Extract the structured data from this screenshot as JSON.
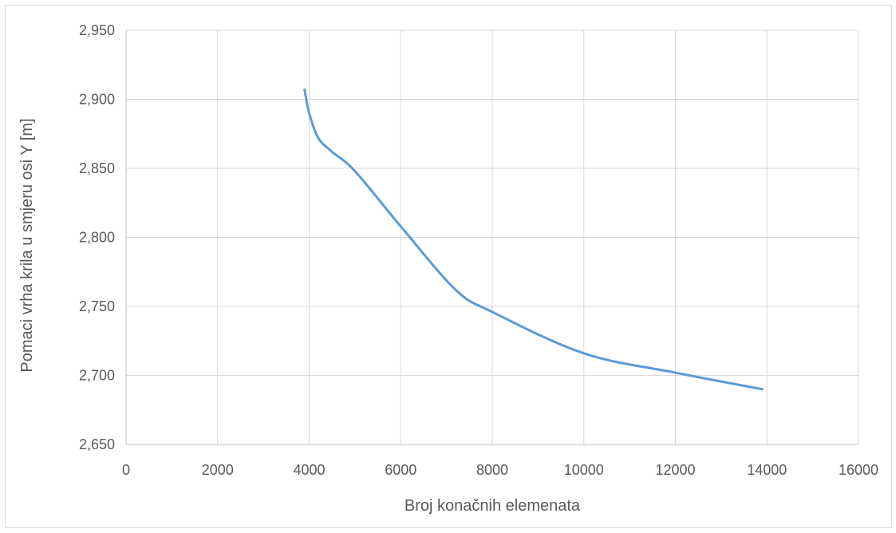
{
  "chart_data": {
    "type": "line",
    "title": "",
    "xlabel": "Broj konačnih elemenata",
    "ylabel": "Pomaci vrha krila u smjeru osi Y [m]",
    "xlim": [
      0,
      16000
    ],
    "ylim": [
      2.65,
      2.95
    ],
    "x_ticks": [
      0,
      2000,
      4000,
      6000,
      8000,
      10000,
      12000,
      14000,
      16000
    ],
    "x_tick_labels": [
      "0",
      "2000",
      "4000",
      "6000",
      "8000",
      "10000",
      "12000",
      "14000",
      "16000"
    ],
    "y_ticks": [
      2.65,
      2.7,
      2.75,
      2.8,
      2.85,
      2.9,
      2.95
    ],
    "y_tick_labels": [
      "2,650",
      "2,700",
      "2,750",
      "2,800",
      "2,850",
      "2,900",
      "2,950"
    ],
    "grid": true,
    "legend": "none",
    "series": [
      {
        "color": "#5b9bd5",
        "x": [
          3900,
          4000,
          4200,
          4500,
          5000,
          6000,
          7200,
          8000,
          10000,
          12000,
          13900
        ],
        "y": [
          2.907,
          2.89,
          2.872,
          2.862,
          2.848,
          2.808,
          2.762,
          2.746,
          2.716,
          2.702,
          2.69
        ]
      }
    ]
  }
}
